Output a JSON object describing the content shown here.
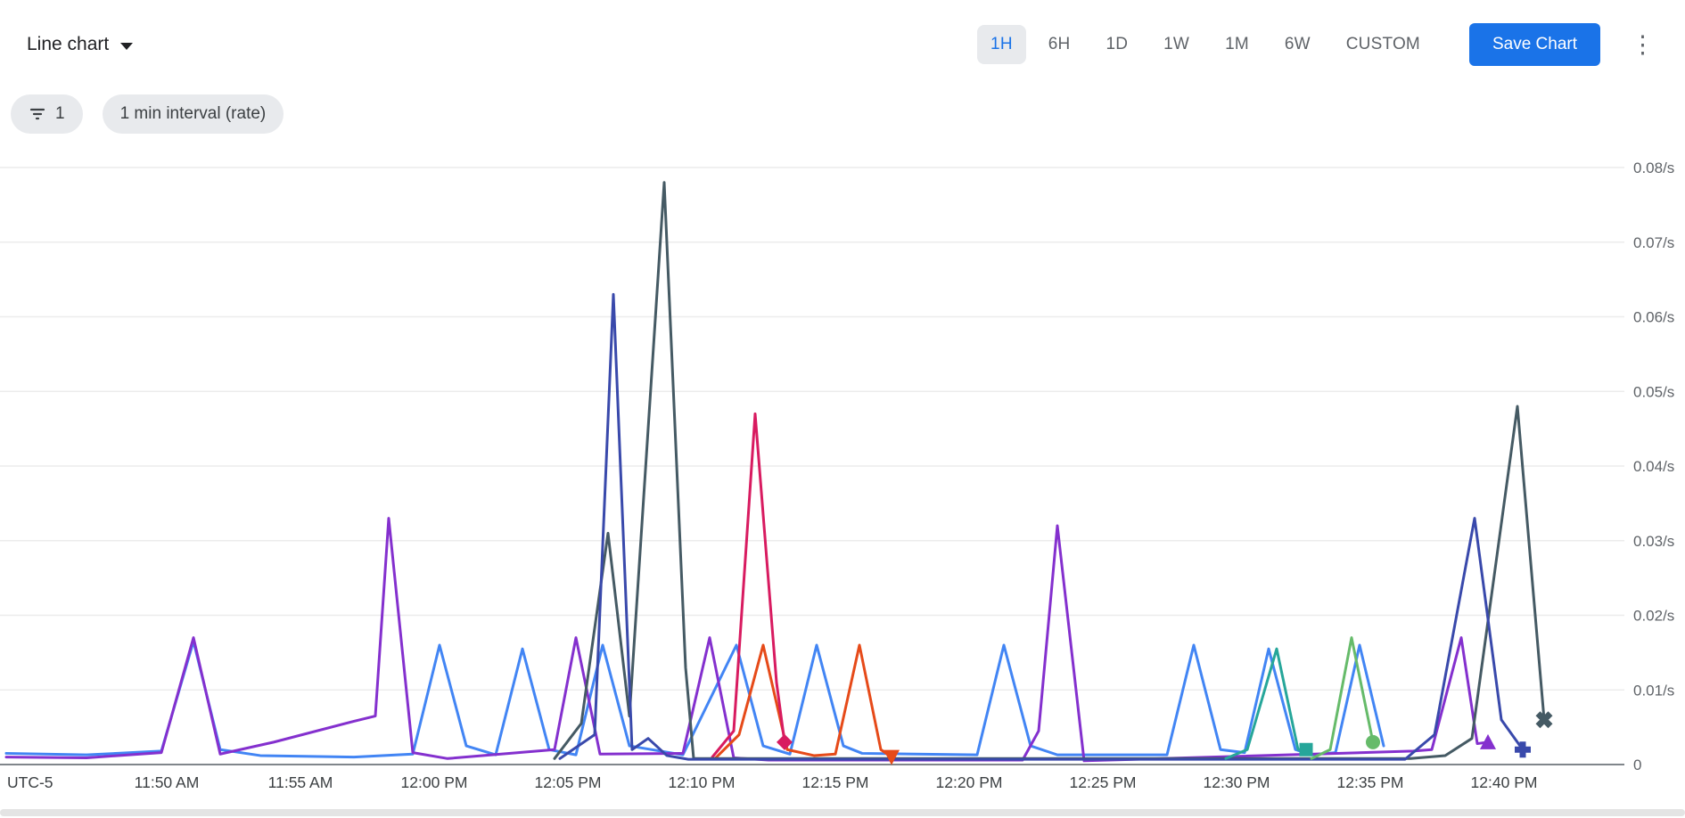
{
  "header": {
    "chart_type_label": "Line chart",
    "time_ranges": [
      {
        "label": "1H",
        "selected": true
      },
      {
        "label": "6H",
        "selected": false
      },
      {
        "label": "1D",
        "selected": false
      },
      {
        "label": "1W",
        "selected": false
      },
      {
        "label": "1M",
        "selected": false
      },
      {
        "label": "6W",
        "selected": false
      },
      {
        "label": "CUSTOM",
        "selected": false
      }
    ],
    "save_button_label": "Save Chart",
    "accent_color": "#1a73e8"
  },
  "filters": {
    "filter_chip_count": "1",
    "interval_chip_label": "1 min interval (rate)"
  },
  "chart_data": {
    "type": "line",
    "title": "",
    "y_unit": "/s",
    "timezone_label": "UTC-5",
    "grid": true,
    "legend": "none",
    "ylim": [
      0,
      0.08
    ],
    "xlim_minutes": [
      0,
      60.5
    ],
    "x_axis_start_time": "11:44 AM",
    "x_ticks": [
      {
        "t": 6,
        "label": "11:50 AM"
      },
      {
        "t": 11,
        "label": "11:55 AM"
      },
      {
        "t": 16,
        "label": "12:00 PM"
      },
      {
        "t": 21,
        "label": "12:05 PM"
      },
      {
        "t": 26,
        "label": "12:10 PM"
      },
      {
        "t": 31,
        "label": "12:15 PM"
      },
      {
        "t": 36,
        "label": "12:20 PM"
      },
      {
        "t": 41,
        "label": "12:25 PM"
      },
      {
        "t": 46,
        "label": "12:30 PM"
      },
      {
        "t": 51,
        "label": "12:35 PM"
      },
      {
        "t": 56,
        "label": "12:40 PM"
      }
    ],
    "y_ticks": [
      {
        "v": 0,
        "label": "0"
      },
      {
        "v": 0.01,
        "label": "0.01/s"
      },
      {
        "v": 0.02,
        "label": "0.02/s"
      },
      {
        "v": 0.03,
        "label": "0.03/s"
      },
      {
        "v": 0.04,
        "label": "0.04/s"
      },
      {
        "v": 0.05,
        "label": "0.05/s"
      },
      {
        "v": 0.06,
        "label": "0.06/s"
      },
      {
        "v": 0.07,
        "label": "0.07/s"
      },
      {
        "v": 0.08,
        "label": "0.08/s"
      }
    ],
    "series": [
      {
        "name": "blue",
        "color": "#4285f4",
        "marker": null,
        "points": [
          [
            0,
            0.0015
          ],
          [
            3,
            0.0013
          ],
          [
            5.8,
            0.0018
          ],
          [
            7,
            0.0165
          ],
          [
            8,
            0.002
          ],
          [
            9.5,
            0.0012
          ],
          [
            13,
            0.001
          ],
          [
            15.2,
            0.0014
          ],
          [
            16.2,
            0.016
          ],
          [
            17.2,
            0.0025
          ],
          [
            18.3,
            0.0013
          ],
          [
            19.3,
            0.0155
          ],
          [
            20.3,
            0.002
          ],
          [
            21.3,
            0.0013
          ],
          [
            22.3,
            0.016
          ],
          [
            23.3,
            0.0025
          ],
          [
            25.3,
            0.0013
          ],
          [
            27.3,
            0.016
          ],
          [
            28.3,
            0.0025
          ],
          [
            29.3,
            0.0014
          ],
          [
            30.3,
            0.016
          ],
          [
            31.3,
            0.0025
          ],
          [
            32,
            0.0015
          ],
          [
            36.3,
            0.0013
          ],
          [
            37.3,
            0.016
          ],
          [
            38.3,
            0.0025
          ],
          [
            39.3,
            0.0013
          ],
          [
            43.4,
            0.0013
          ],
          [
            44.4,
            0.016
          ],
          [
            45.4,
            0.002
          ],
          [
            46.3,
            0.0016
          ],
          [
            47.2,
            0.0155
          ],
          [
            48.2,
            0.002
          ],
          [
            48.8,
            0.0013
          ],
          [
            49.7,
            0.0016
          ],
          [
            50.6,
            0.016
          ],
          [
            51.5,
            0.0025
          ]
        ]
      },
      {
        "name": "purple",
        "color": "#8430ce",
        "marker": "triangle-up",
        "points": [
          [
            0,
            0.001
          ],
          [
            3,
            0.0009
          ],
          [
            5.8,
            0.0016
          ],
          [
            7,
            0.017
          ],
          [
            8,
            0.0014
          ],
          [
            10,
            0.003
          ],
          [
            13,
            0.0058
          ],
          [
            13.8,
            0.0065
          ],
          [
            14.3,
            0.033
          ],
          [
            15.2,
            0.0016
          ],
          [
            16.5,
            0.0008
          ],
          [
            20.5,
            0.002
          ],
          [
            21.3,
            0.017
          ],
          [
            22.2,
            0.0014
          ],
          [
            25.3,
            0.0015
          ],
          [
            26.3,
            0.017
          ],
          [
            27.2,
            0.0009
          ],
          [
            28.5,
            0.0006
          ],
          [
            38,
            0.0006
          ],
          [
            38.6,
            0.0045
          ],
          [
            39.3,
            0.032
          ],
          [
            40.3,
            0.0005
          ],
          [
            52.6,
            0.0018
          ],
          [
            53.3,
            0.002
          ],
          [
            54.4,
            0.017
          ],
          [
            55,
            0.0028
          ],
          [
            55.4,
            0.003
          ]
        ]
      },
      {
        "name": "orange",
        "color": "#e64a19",
        "marker": "triangle-down",
        "points": [
          [
            26.5,
            0.0008
          ],
          [
            27.4,
            0.004
          ],
          [
            28.3,
            0.016
          ],
          [
            29.2,
            0.002
          ],
          [
            30.2,
            0.0012
          ],
          [
            31,
            0.0014
          ],
          [
            31.9,
            0.016
          ],
          [
            32.7,
            0.002
          ],
          [
            33.1,
            0.001
          ]
        ]
      },
      {
        "name": "pink",
        "color": "#d81b60",
        "marker": "diamond",
        "points": [
          [
            26.4,
            0.001
          ],
          [
            27.2,
            0.0045
          ],
          [
            28,
            0.047
          ],
          [
            28.8,
            0.011
          ],
          [
            29.1,
            0.003
          ]
        ]
      },
      {
        "name": "dark-slate",
        "color": "#455a64",
        "marker": "x",
        "points": [
          [
            20.5,
            0.0008
          ],
          [
            21.5,
            0.0055
          ],
          [
            22.5,
            0.031
          ],
          [
            23.3,
            0.0065
          ],
          [
            24.6,
            0.078
          ],
          [
            25.4,
            0.013
          ],
          [
            25.7,
            0.0008
          ],
          [
            52.5,
            0.0008
          ],
          [
            53.8,
            0.0012
          ],
          [
            54.8,
            0.0035
          ],
          [
            56.5,
            0.048
          ],
          [
            57.5,
            0.006
          ]
        ]
      },
      {
        "name": "navy",
        "color": "#3949ab",
        "marker": "plus",
        "points": [
          [
            20.7,
            0.0008
          ],
          [
            22,
            0.004
          ],
          [
            22.7,
            0.063
          ],
          [
            23.4,
            0.002
          ],
          [
            24,
            0.0035
          ],
          [
            24.7,
            0.0012
          ],
          [
            25.5,
            0.0007
          ],
          [
            52.3,
            0.0007
          ],
          [
            53.4,
            0.004
          ],
          [
            54.9,
            0.033
          ],
          [
            55.9,
            0.006
          ],
          [
            56.7,
            0.002
          ]
        ]
      },
      {
        "name": "teal",
        "color": "#26a69a",
        "marker": "square",
        "points": [
          [
            45.6,
            0.0008
          ],
          [
            46.4,
            0.002
          ],
          [
            47.5,
            0.0155
          ],
          [
            48.3,
            0.002
          ],
          [
            48.6,
            0.002
          ]
        ]
      },
      {
        "name": "green",
        "color": "#66bb6a",
        "marker": "circle",
        "points": [
          [
            48.8,
            0.0008
          ],
          [
            49.5,
            0.002
          ],
          [
            50.3,
            0.017
          ],
          [
            51.1,
            0.003
          ]
        ]
      }
    ]
  }
}
